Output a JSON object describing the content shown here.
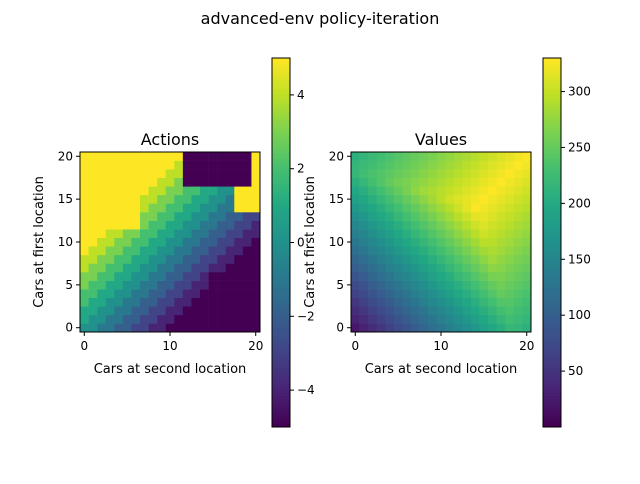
{
  "figure": {
    "suptitle": "advanced-env policy-iteration"
  },
  "chart_data": [
    {
      "type": "heatmap",
      "title": "Actions",
      "xlabel": "Cars at second location",
      "ylabel": "Cars at first location",
      "xlim": [
        0,
        20
      ],
      "ylim": [
        0,
        20
      ],
      "x_ticks": [
        0,
        10,
        20
      ],
      "y_ticks": [
        0,
        5,
        10,
        15,
        20
      ],
      "colorscale": "viridis",
      "colorbar": {
        "range": [
          -5,
          5
        ],
        "ticks": [
          -4,
          -2,
          0,
          2,
          4
        ]
      },
      "grid": false
    },
    {
      "type": "heatmap",
      "title": "Values",
      "xlabel": "Cars at second location",
      "ylabel": "Cars at first location",
      "xlim": [
        0,
        20
      ],
      "ylim": [
        0,
        20
      ],
      "x_ticks": [
        0,
        10,
        20
      ],
      "y_ticks": [
        0,
        5,
        10,
        15,
        20
      ],
      "colorscale": "viridis",
      "colorbar": {
        "range": [
          0,
          330
        ],
        "ticks": [
          50,
          100,
          150,
          200,
          250,
          300
        ]
      },
      "grid": false
    }
  ]
}
